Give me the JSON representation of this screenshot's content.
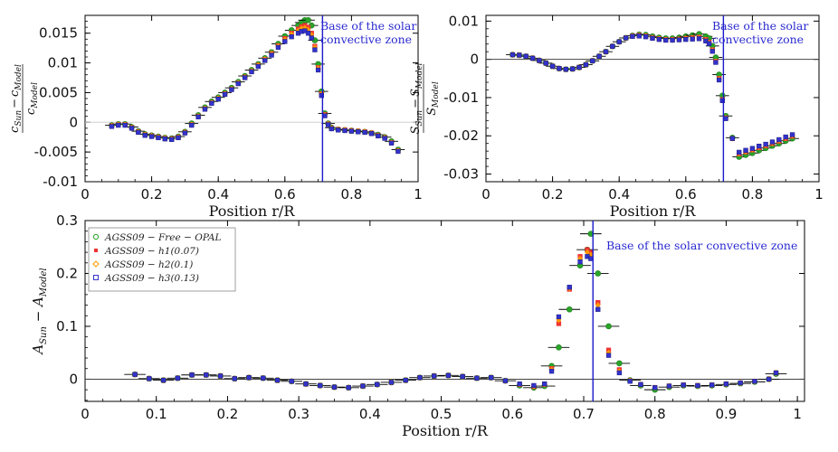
{
  "chart_data": [
    {
      "id": "sound-speed",
      "type": "scatter",
      "title": "",
      "xlabel": "Position r/R",
      "ylabel": "(c²Sun − c²Model) / c²Model",
      "ylabel_parts": {
        "num_left": "c",
        "num_left_sub": "Sun",
        "num_right": "c",
        "num_right_sub": "Model",
        "den": "c",
        "den_sub": "Model"
      },
      "xlim": [
        0,
        1
      ],
      "ylim": [
        -0.01,
        0.018
      ],
      "xticks": [
        0,
        0.2,
        0.4,
        0.6,
        0.8,
        1
      ],
      "xtick_labels": [
        "0",
        "0.2",
        "0.4",
        "0.6",
        "0.8",
        "1"
      ],
      "yticks": [
        -0.01,
        -0.005,
        0,
        0.005,
        0.01,
        0.015
      ],
      "ytick_labels": [
        "-0.01",
        "-0.005",
        "0",
        "0.005",
        "0.01",
        "0.015"
      ],
      "vline": {
        "x": 0.713,
        "label_lines": [
          "Base of the solar",
          "convective zone"
        ]
      },
      "zero_line": true,
      "x": [
        0.08,
        0.1,
        0.12,
        0.14,
        0.16,
        0.18,
        0.2,
        0.22,
        0.24,
        0.26,
        0.28,
        0.3,
        0.32,
        0.34,
        0.36,
        0.38,
        0.4,
        0.42,
        0.44,
        0.46,
        0.48,
        0.5,
        0.52,
        0.54,
        0.56,
        0.58,
        0.6,
        0.62,
        0.64,
        0.65,
        0.66,
        0.67,
        0.68,
        0.69,
        0.7,
        0.71,
        0.72,
        0.73,
        0.74,
        0.76,
        0.78,
        0.8,
        0.82,
        0.84,
        0.86,
        0.88,
        0.9,
        0.92,
        0.94
      ],
      "xerr": 0.02,
      "series": [
        {
          "name": "Free-OPAL",
          "color": "#2aa52a",
          "values": [
            -0.0005,
            -0.0003,
            -0.0003,
            -0.0008,
            -0.0015,
            -0.002,
            -0.0022,
            -0.0024,
            -0.0026,
            -0.0027,
            -0.0024,
            -0.0016,
            -0.0002,
            0.0012,
            0.0025,
            0.0035,
            0.0042,
            0.005,
            0.0058,
            0.0068,
            0.0078,
            0.0088,
            0.0098,
            0.0108,
            0.0118,
            0.0132,
            0.0145,
            0.0155,
            0.0163,
            0.0168,
            0.0172,
            0.0172,
            0.0163,
            0.0138,
            0.0098,
            0.0052,
            0.0015,
            -0.0002,
            -0.0009,
            -0.0012,
            -0.0013,
            -0.0014,
            -0.0015,
            -0.0016,
            -0.0018,
            -0.0021,
            -0.0025,
            -0.0032,
            -0.0046
          ]
        },
        {
          "name": "h1",
          "color": "#ee3333",
          "values": [
            -0.0006,
            -0.0004,
            -0.0004,
            -0.0009,
            -0.0016,
            -0.0021,
            -0.0023,
            -0.0025,
            -0.0027,
            -0.0028,
            -0.0025,
            -0.0017,
            -0.0004,
            0.001,
            0.0023,
            0.0033,
            0.004,
            0.0048,
            0.0056,
            0.0066,
            0.0076,
            0.0086,
            0.0096,
            0.0106,
            0.0116,
            0.0129,
            0.0141,
            0.015,
            0.0157,
            0.0161,
            0.0163,
            0.016,
            0.015,
            0.0128,
            0.0092,
            0.0048,
            0.0013,
            -0.0003,
            -0.001,
            -0.0012,
            -0.0013,
            -0.0014,
            -0.0015,
            -0.0016,
            -0.0018,
            -0.0022,
            -0.0026,
            -0.0034,
            -0.0048
          ]
        },
        {
          "name": "h2",
          "color": "#ff9900",
          "values": [
            -0.0006,
            -0.0004,
            -0.0004,
            -0.0009,
            -0.0016,
            -0.0021,
            -0.0023,
            -0.0025,
            -0.0027,
            -0.0028,
            -0.0025,
            -0.0017,
            -0.0004,
            0.001,
            0.0023,
            0.0033,
            0.004,
            0.0048,
            0.0056,
            0.0066,
            0.0076,
            0.0086,
            0.0096,
            0.0106,
            0.0115,
            0.0128,
            0.0139,
            0.0148,
            0.0154,
            0.0158,
            0.0159,
            0.0156,
            0.0147,
            0.0126,
            0.0091,
            0.0047,
            0.0012,
            -0.0003,
            -0.001,
            -0.0012,
            -0.0013,
            -0.0014,
            -0.0015,
            -0.0016,
            -0.0018,
            -0.0022,
            -0.0026,
            -0.0034,
            -0.0048
          ]
        },
        {
          "name": "h3",
          "color": "#3333cc",
          "values": [
            -0.0007,
            -0.0005,
            -0.0005,
            -0.001,
            -0.0017,
            -0.0022,
            -0.0024,
            -0.0026,
            -0.0028,
            -0.0029,
            -0.0026,
            -0.0018,
            -0.0005,
            0.0009,
            0.0022,
            0.0032,
            0.0039,
            0.0047,
            0.0055,
            0.0065,
            0.0075,
            0.0085,
            0.0094,
            0.0104,
            0.0113,
            0.0126,
            0.0136,
            0.0144,
            0.015,
            0.0153,
            0.0154,
            0.015,
            0.0142,
            0.0122,
            0.0088,
            0.0045,
            0.0011,
            -0.0004,
            -0.0011,
            -0.0013,
            -0.0014,
            -0.0015,
            -0.0016,
            -0.0017,
            -0.0019,
            -0.0023,
            -0.0027,
            -0.0035,
            -0.0049
          ]
        }
      ]
    },
    {
      "id": "entropy",
      "type": "scatter",
      "title": "",
      "xlabel": "Position r/R",
      "ylabel": "(SSun − SModel) / SModel",
      "ylabel_parts": {
        "num_left": "S",
        "num_left_sub": "Sun",
        "num_right": "S",
        "num_right_sub": "Model",
        "den": "S",
        "den_sub": "Model"
      },
      "xlim": [
        0,
        1
      ],
      "ylim": [
        -0.032,
        0.0115
      ],
      "xticks": [
        0,
        0.2,
        0.4,
        0.6,
        0.8,
        1
      ],
      "xtick_labels": [
        "0",
        "0.2",
        "0.4",
        "0.6",
        "0.8",
        "1"
      ],
      "yticks": [
        -0.03,
        -0.02,
        -0.01,
        0,
        0.01
      ],
      "ytick_labels": [
        "-0.03",
        "-0.02",
        "-0.01",
        "0",
        "0.01"
      ],
      "vline": {
        "x": 0.713,
        "label_lines": [
          "Base of the solar",
          "convective zone"
        ]
      },
      "zero_line": true,
      "x": [
        0.08,
        0.1,
        0.12,
        0.14,
        0.16,
        0.18,
        0.2,
        0.22,
        0.24,
        0.26,
        0.28,
        0.3,
        0.32,
        0.34,
        0.36,
        0.38,
        0.4,
        0.42,
        0.44,
        0.46,
        0.48,
        0.5,
        0.52,
        0.54,
        0.56,
        0.58,
        0.6,
        0.62,
        0.64,
        0.66,
        0.67,
        0.68,
        0.69,
        0.7,
        0.71,
        0.72,
        0.74,
        0.76,
        0.78,
        0.8,
        0.82,
        0.84,
        0.86,
        0.88,
        0.9,
        0.92
      ],
      "xerr": 0.02,
      "series": [
        {
          "name": "Free-OPAL",
          "color": "#2aa52a",
          "values": [
            0.0012,
            0.0011,
            0.0008,
            0.0003,
            -0.0003,
            -0.001,
            -0.0018,
            -0.0024,
            -0.0026,
            -0.0025,
            -0.0021,
            -0.0014,
            -0.0004,
            0.0008,
            0.002,
            0.0034,
            0.0046,
            0.0056,
            0.0062,
            0.0065,
            0.0064,
            0.006,
            0.0057,
            0.0055,
            0.0055,
            0.0057,
            0.006,
            0.0063,
            0.0066,
            0.006,
            0.0055,
            0.0035,
            0.0005,
            -0.004,
            -0.0095,
            -0.0148,
            -0.0205,
            -0.0255,
            -0.025,
            -0.0245,
            -0.0238,
            -0.0232,
            -0.0226,
            -0.022,
            -0.0213,
            -0.0207
          ]
        },
        {
          "name": "h1",
          "color": "#ee3333",
          "values": [
            0.0012,
            0.0011,
            0.0008,
            0.0003,
            -0.0003,
            -0.001,
            -0.0018,
            -0.0024,
            -0.0026,
            -0.0025,
            -0.0021,
            -0.0014,
            -0.0004,
            0.0008,
            0.002,
            0.0034,
            0.0046,
            0.0056,
            0.0061,
            0.0063,
            0.0061,
            0.0057,
            0.0054,
            0.0052,
            0.0052,
            0.0053,
            0.0055,
            0.0057,
            0.0058,
            0.0052,
            0.0045,
            0.0025,
            -0.0005,
            -0.005,
            -0.0105,
            -0.0153,
            -0.0207,
            -0.0247,
            -0.0242,
            -0.0237,
            -0.0231,
            -0.0226,
            -0.022,
            -0.0214,
            -0.0207,
            -0.0201
          ]
        },
        {
          "name": "h2",
          "color": "#ff9900",
          "values": [
            0.0012,
            0.0011,
            0.0008,
            0.0003,
            -0.0003,
            -0.001,
            -0.0018,
            -0.0024,
            -0.0026,
            -0.0025,
            -0.0021,
            -0.0014,
            -0.0004,
            0.0008,
            0.002,
            0.0034,
            0.0046,
            0.0056,
            0.0061,
            0.0062,
            0.006,
            0.0056,
            0.0053,
            0.0051,
            0.0051,
            0.0052,
            0.0054,
            0.0055,
            0.0056,
            0.005,
            0.0043,
            0.0023,
            -0.0006,
            -0.0052,
            -0.0107,
            -0.0154,
            -0.0207,
            -0.0245,
            -0.024,
            -0.0235,
            -0.0229,
            -0.0224,
            -0.0218,
            -0.0212,
            -0.0205,
            -0.0199
          ]
        },
        {
          "name": "h3",
          "color": "#3333cc",
          "values": [
            0.0012,
            0.0011,
            0.0008,
            0.0003,
            -0.0003,
            -0.001,
            -0.0018,
            -0.0024,
            -0.0026,
            -0.0025,
            -0.0021,
            -0.0014,
            -0.0004,
            0.0008,
            0.002,
            0.0034,
            0.0046,
            0.0056,
            0.006,
            0.0061,
            0.0059,
            0.0055,
            0.0052,
            0.005,
            0.005,
            0.0051,
            0.0052,
            0.0053,
            0.0054,
            0.0048,
            0.0041,
            0.0021,
            -0.0008,
            -0.0054,
            -0.0108,
            -0.0155,
            -0.0207,
            -0.0243,
            -0.0238,
            -0.0233,
            -0.0227,
            -0.0222,
            -0.0216,
            -0.021,
            -0.0203,
            -0.0197
          ]
        }
      ]
    },
    {
      "id": "ledoux",
      "type": "scatter",
      "title": "",
      "xlabel": "Position r/R",
      "ylabel": "ASun − AModel",
      "ylabel_parts": {
        "left": "A",
        "left_sub": "Sun",
        "right": "A",
        "right_sub": "Model"
      },
      "xlim": [
        0,
        1.01
      ],
      "ylim": [
        -0.042,
        0.3
      ],
      "xticks": [
        0,
        0.1,
        0.2,
        0.3,
        0.4,
        0.5,
        0.6,
        0.7,
        0.8,
        0.9,
        1
      ],
      "xtick_labels": [
        "0",
        "0.1",
        "0.2",
        "0.3",
        "0.4",
        "0.5",
        "0.6",
        "0.7",
        "0.8",
        "0.9",
        "1"
      ],
      "yticks": [
        0,
        0.1,
        0.2,
        0.3
      ],
      "ytick_labels": [
        "0",
        "0.1",
        "0.2",
        "0.3"
      ],
      "vline": {
        "x": 0.713,
        "label_lines": [
          "Base of the solar convective zone"
        ]
      },
      "zero_line": true,
      "legend": [
        "AGSS09 − Free − OPAL",
        "AGSS09 − h1(0.07)",
        "AGSS09 − h2(0.1)",
        "AGSS09 − h3(0.13)"
      ],
      "legend_position": "top-left",
      "x": [
        0.07,
        0.09,
        0.11,
        0.13,
        0.15,
        0.17,
        0.19,
        0.21,
        0.23,
        0.25,
        0.27,
        0.29,
        0.31,
        0.33,
        0.35,
        0.37,
        0.39,
        0.41,
        0.43,
        0.45,
        0.47,
        0.49,
        0.51,
        0.53,
        0.55,
        0.57,
        0.59,
        0.61,
        0.63,
        0.645,
        0.655,
        0.665,
        0.68,
        0.695,
        0.705,
        0.71,
        0.72,
        0.735,
        0.75,
        0.765,
        0.78,
        0.8,
        0.82,
        0.84,
        0.86,
        0.88,
        0.9,
        0.92,
        0.94,
        0.96,
        0.97
      ],
      "xerr": 0.015,
      "series": [
        {
          "name": "AGSS09 − Free − OPAL",
          "color": "#2aa52a",
          "values": [
            0.009,
            0.001,
            -0.002,
            0.002,
            0.008,
            0.008,
            0.006,
            0.001,
            0.003,
            0.002,
            -0.002,
            -0.004,
            -0.009,
            -0.012,
            -0.015,
            -0.016,
            -0.013,
            -0.01,
            -0.006,
            -0.002,
            0.003,
            0.006,
            0.007,
            0.005,
            0.002,
            0.003,
            -0.003,
            -0.012,
            -0.016,
            -0.013,
            0.025,
            0.06,
            0.132,
            0.215,
            0.245,
            0.275,
            0.2,
            0.1,
            0.03,
            -0.002,
            -0.012,
            -0.02,
            -0.015,
            -0.012,
            -0.013,
            -0.012,
            -0.01,
            -0.008,
            -0.005,
            0.0,
            0.01
          ]
        },
        {
          "name": "AGSS09 − h1(0.07)",
          "color": "#ee3333",
          "values": [
            0.009,
            0.001,
            -0.002,
            0.002,
            0.008,
            0.008,
            0.006,
            0.001,
            0.003,
            0.002,
            -0.002,
            -0.004,
            -0.009,
            -0.012,
            -0.015,
            -0.016,
            -0.013,
            -0.01,
            -0.006,
            -0.002,
            0.003,
            0.006,
            0.007,
            0.005,
            0.002,
            0.003,
            -0.003,
            -0.01,
            -0.014,
            -0.01,
            0.02,
            0.105,
            0.17,
            0.232,
            0.245,
            0.24,
            0.145,
            0.055,
            0.018,
            -0.003,
            -0.01,
            -0.016,
            -0.013,
            -0.011,
            -0.012,
            -0.011,
            -0.009,
            -0.007,
            -0.004,
            0.0,
            0.012
          ]
        },
        {
          "name": "AGSS09 − h2(0.1)",
          "color": "#ff9900",
          "values": [
            0.009,
            0.001,
            -0.002,
            0.002,
            0.008,
            0.008,
            0.006,
            0.001,
            0.003,
            0.002,
            -0.002,
            -0.004,
            -0.009,
            -0.012,
            -0.015,
            -0.016,
            -0.013,
            -0.01,
            -0.006,
            -0.002,
            0.003,
            0.006,
            0.007,
            0.005,
            0.002,
            0.003,
            -0.003,
            -0.01,
            -0.013,
            -0.01,
            0.018,
            0.112,
            0.172,
            0.228,
            0.24,
            0.235,
            0.14,
            0.05,
            0.015,
            -0.003,
            -0.01,
            -0.016,
            -0.013,
            -0.011,
            -0.012,
            -0.011,
            -0.009,
            -0.007,
            -0.004,
            0.0,
            0.012
          ]
        },
        {
          "name": "AGSS09 − h3(0.13)",
          "color": "#3333cc",
          "values": [
            0.009,
            0.001,
            -0.002,
            0.002,
            0.008,
            0.008,
            0.006,
            0.001,
            0.003,
            0.002,
            -0.002,
            -0.004,
            -0.009,
            -0.012,
            -0.015,
            -0.016,
            -0.013,
            -0.01,
            -0.006,
            -0.002,
            0.003,
            0.006,
            0.007,
            0.005,
            0.002,
            0.003,
            -0.003,
            -0.009,
            -0.012,
            -0.009,
            0.015,
            0.118,
            0.174,
            0.222,
            0.232,
            0.228,
            0.132,
            0.045,
            0.012,
            -0.004,
            -0.01,
            -0.016,
            -0.013,
            -0.011,
            -0.012,
            -0.011,
            -0.009,
            -0.007,
            -0.004,
            0.0,
            0.012
          ]
        }
      ]
    }
  ]
}
